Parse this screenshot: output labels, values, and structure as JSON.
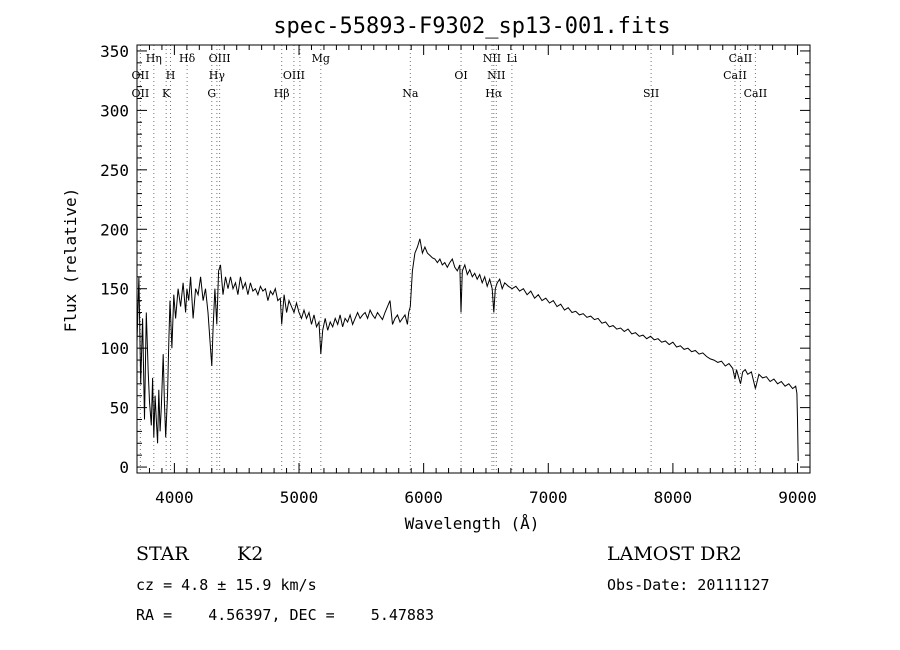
{
  "chart_data": {
    "type": "line",
    "title": "spec-55893-F9302_sp13-001.fits",
    "xlabel": "Wavelength (Å)",
    "ylabel": "Flux (relative)",
    "xlim": [
      3700,
      9100
    ],
    "ylim": [
      -5,
      355
    ],
    "x_ticks": [
      4000,
      5000,
      6000,
      7000,
      8000,
      9000
    ],
    "y_ticks": [
      0,
      50,
      100,
      150,
      200,
      250,
      300,
      350
    ],
    "grid": false,
    "colors": {
      "spectrum": "#000000",
      "line_markers": "#d84a4a"
    },
    "series": [
      {
        "points": [
          [
            3700,
            105
          ],
          [
            3715,
            160
          ],
          [
            3730,
            70
          ],
          [
            3745,
            125
          ],
          [
            3760,
            40
          ],
          [
            3775,
            130
          ],
          [
            3790,
            80
          ],
          [
            3800,
            55
          ],
          [
            3815,
            35
          ],
          [
            3825,
            75
          ],
          [
            3835,
            25
          ],
          [
            3845,
            60
          ],
          [
            3855,
            40
          ],
          [
            3865,
            20
          ],
          [
            3875,
            65
          ],
          [
            3885,
            30
          ],
          [
            3895,
            50
          ],
          [
            3910,
            95
          ],
          [
            3920,
            55
          ],
          [
            3930,
            25
          ],
          [
            3945,
            60
          ],
          [
            3955,
            105
          ],
          [
            3965,
            140
          ],
          [
            3980,
            100
          ],
          [
            3995,
            145
          ],
          [
            4010,
            125
          ],
          [
            4030,
            150
          ],
          [
            4050,
            135
          ],
          [
            4070,
            155
          ],
          [
            4090,
            130
          ],
          [
            4100,
            150
          ],
          [
            4115,
            140
          ],
          [
            4130,
            160
          ],
          [
            4150,
            125
          ],
          [
            4170,
            150
          ],
          [
            4190,
            145
          ],
          [
            4210,
            160
          ],
          [
            4230,
            140
          ],
          [
            4250,
            150
          ],
          [
            4270,
            130
          ],
          [
            4290,
            100
          ],
          [
            4300,
            85
          ],
          [
            4310,
            115
          ],
          [
            4325,
            150
          ],
          [
            4340,
            120
          ],
          [
            4355,
            165
          ],
          [
            4370,
            170
          ],
          [
            4390,
            145
          ],
          [
            4410,
            160
          ],
          [
            4430,
            150
          ],
          [
            4450,
            160
          ],
          [
            4470,
            150
          ],
          [
            4490,
            155
          ],
          [
            4510,
            145
          ],
          [
            4530,
            160
          ],
          [
            4550,
            150
          ],
          [
            4570,
            155
          ],
          [
            4590,
            145
          ],
          [
            4610,
            155
          ],
          [
            4630,
            148
          ],
          [
            4650,
            150
          ],
          [
            4670,
            145
          ],
          [
            4690,
            152
          ],
          [
            4710,
            148
          ],
          [
            4730,
            150
          ],
          [
            4750,
            140
          ],
          [
            4770,
            148
          ],
          [
            4790,
            145
          ],
          [
            4810,
            150
          ],
          [
            4830,
            140
          ],
          [
            4850,
            142
          ],
          [
            4861,
            120
          ],
          [
            4880,
            145
          ],
          [
            4900,
            130
          ],
          [
            4920,
            140
          ],
          [
            4940,
            135
          ],
          [
            4960,
            130
          ],
          [
            4980,
            138
          ],
          [
            5000,
            130
          ],
          [
            5020,
            125
          ],
          [
            5040,
            132
          ],
          [
            5060,
            125
          ],
          [
            5080,
            130
          ],
          [
            5100,
            120
          ],
          [
            5120,
            128
          ],
          [
            5140,
            118
          ],
          [
            5160,
            122
          ],
          [
            5175,
            95
          ],
          [
            5190,
            115
          ],
          [
            5210,
            125
          ],
          [
            5230,
            115
          ],
          [
            5250,
            122
          ],
          [
            5270,
            118
          ],
          [
            5290,
            125
          ],
          [
            5310,
            120
          ],
          [
            5330,
            128
          ],
          [
            5350,
            118
          ],
          [
            5370,
            125
          ],
          [
            5390,
            122
          ],
          [
            5410,
            128
          ],
          [
            5430,
            120
          ],
          [
            5450,
            125
          ],
          [
            5470,
            130
          ],
          [
            5490,
            125
          ],
          [
            5510,
            128
          ],
          [
            5530,
            130
          ],
          [
            5550,
            125
          ],
          [
            5570,
            132
          ],
          [
            5590,
            128
          ],
          [
            5610,
            125
          ],
          [
            5630,
            130
          ],
          [
            5650,
            127
          ],
          [
            5670,
            124
          ],
          [
            5690,
            130
          ],
          [
            5710,
            135
          ],
          [
            5730,
            140
          ],
          [
            5750,
            120
          ],
          [
            5770,
            125
          ],
          [
            5790,
            128
          ],
          [
            5810,
            122
          ],
          [
            5830,
            125
          ],
          [
            5850,
            128
          ],
          [
            5870,
            120
          ],
          [
            5880,
            130
          ],
          [
            5893,
            135
          ],
          [
            5910,
            165
          ],
          [
            5930,
            180
          ],
          [
            5950,
            185
          ],
          [
            5970,
            192
          ],
          [
            5990,
            180
          ],
          [
            6010,
            185
          ],
          [
            6030,
            180
          ],
          [
            6050,
            178
          ],
          [
            6070,
            176
          ],
          [
            6090,
            175
          ],
          [
            6110,
            172
          ],
          [
            6130,
            175
          ],
          [
            6150,
            170
          ],
          [
            6170,
            172
          ],
          [
            6190,
            168
          ],
          [
            6210,
            172
          ],
          [
            6230,
            175
          ],
          [
            6250,
            168
          ],
          [
            6270,
            165
          ],
          [
            6290,
            170
          ],
          [
            6300,
            130
          ],
          [
            6310,
            165
          ],
          [
            6330,
            170
          ],
          [
            6350,
            162
          ],
          [
            6370,
            166
          ],
          [
            6390,
            160
          ],
          [
            6410,
            163
          ],
          [
            6430,
            158
          ],
          [
            6450,
            162
          ],
          [
            6470,
            155
          ],
          [
            6490,
            160
          ],
          [
            6510,
            152
          ],
          [
            6530,
            158
          ],
          [
            6550,
            150
          ],
          [
            6563,
            130
          ],
          [
            6575,
            150
          ],
          [
            6590,
            155
          ],
          [
            6610,
            158
          ],
          [
            6630,
            150
          ],
          [
            6650,
            155
          ],
          [
            6680,
            152
          ],
          [
            6710,
            150
          ],
          [
            6740,
            152
          ],
          [
            6770,
            148
          ],
          [
            6800,
            150
          ],
          [
            6830,
            145
          ],
          [
            6860,
            148
          ],
          [
            6890,
            142
          ],
          [
            6920,
            145
          ],
          [
            6950,
            140
          ],
          [
            6980,
            142
          ],
          [
            7010,
            138
          ],
          [
            7040,
            140
          ],
          [
            7070,
            135
          ],
          [
            7100,
            137
          ],
          [
            7130,
            132
          ],
          [
            7160,
            134
          ],
          [
            7190,
            130
          ],
          [
            7220,
            131
          ],
          [
            7250,
            128
          ],
          [
            7280,
            129
          ],
          [
            7310,
            126
          ],
          [
            7340,
            127
          ],
          [
            7370,
            124
          ],
          [
            7400,
            125
          ],
          [
            7430,
            121
          ],
          [
            7460,
            122
          ],
          [
            7490,
            118
          ],
          [
            7520,
            119
          ],
          [
            7550,
            116
          ],
          [
            7580,
            117
          ],
          [
            7610,
            114
          ],
          [
            7640,
            116
          ],
          [
            7670,
            112
          ],
          [
            7700,
            113
          ],
          [
            7730,
            110
          ],
          [
            7760,
            111
          ],
          [
            7790,
            108
          ],
          [
            7820,
            110
          ],
          [
            7850,
            107
          ],
          [
            7880,
            108
          ],
          [
            7910,
            105
          ],
          [
            7940,
            106
          ],
          [
            7970,
            103
          ],
          [
            8000,
            105
          ],
          [
            8030,
            101
          ],
          [
            8060,
            102
          ],
          [
            8090,
            99
          ],
          [
            8120,
            100
          ],
          [
            8150,
            97
          ],
          [
            8180,
            98
          ],
          [
            8210,
            95
          ],
          [
            8240,
            96
          ],
          [
            8270,
            93
          ],
          [
            8300,
            91
          ],
          [
            8330,
            90
          ],
          [
            8360,
            88
          ],
          [
            8390,
            89
          ],
          [
            8420,
            85
          ],
          [
            8450,
            87
          ],
          [
            8480,
            83
          ],
          [
            8498,
            74
          ],
          [
            8510,
            82
          ],
          [
            8542,
            70
          ],
          [
            8560,
            80
          ],
          [
            8580,
            82
          ],
          [
            8600,
            78
          ],
          [
            8630,
            80
          ],
          [
            8662,
            66
          ],
          [
            8690,
            78
          ],
          [
            8720,
            75
          ],
          [
            8750,
            76
          ],
          [
            8780,
            72
          ],
          [
            8810,
            74
          ],
          [
            8840,
            70
          ],
          [
            8870,
            72
          ],
          [
            8900,
            68
          ],
          [
            8930,
            70
          ],
          [
            8960,
            66
          ],
          [
            8985,
            68
          ],
          [
            8995,
            62
          ],
          [
            9000,
            40
          ],
          [
            9005,
            5
          ]
        ]
      }
    ],
    "line_markers": [
      {
        "wavelength": 3727,
        "label": "OII",
        "row": 1
      },
      {
        "wavelength": 3727,
        "label": "OII",
        "row": 2
      },
      {
        "wavelength": 3835,
        "label": "Hη",
        "row": 0
      },
      {
        "wavelength": 3934,
        "label": "K",
        "row": 2
      },
      {
        "wavelength": 3969,
        "label": "H",
        "row": 1
      },
      {
        "wavelength": 4102,
        "label": "Hδ",
        "row": 0
      },
      {
        "wavelength": 4300,
        "label": "G",
        "row": 2
      },
      {
        "wavelength": 4341,
        "label": "Hγ",
        "row": 1
      },
      {
        "wavelength": 4363,
        "label": "OIII",
        "row": 0
      },
      {
        "wavelength": 4861,
        "label": "Hβ",
        "row": 2
      },
      {
        "wavelength": 4959,
        "label": "OIII",
        "row": 1
      },
      {
        "wavelength": 5007,
        "label": "",
        "row": 1
      },
      {
        "wavelength": 5175,
        "label": "Mg",
        "row": 0
      },
      {
        "wavelength": 5893,
        "label": "Na",
        "row": 2
      },
      {
        "wavelength": 6300,
        "label": "OI",
        "row": 1
      },
      {
        "wavelength": 6548,
        "label": "NII",
        "row": 0
      },
      {
        "wavelength": 6563,
        "label": "Hα",
        "row": 2
      },
      {
        "wavelength": 6583,
        "label": "NII",
        "row": 1
      },
      {
        "wavelength": 6708,
        "label": "Li",
        "row": 0
      },
      {
        "wavelength": 7825,
        "label": "SII",
        "row": 2
      },
      {
        "wavelength": 8498,
        "label": "CaII",
        "row": 1
      },
      {
        "wavelength": 8542,
        "label": "CaII",
        "row": 0
      },
      {
        "wavelength": 8662,
        "label": "CaII",
        "row": 2
      }
    ]
  },
  "info": {
    "object_class": "STAR",
    "subclass": "K2",
    "survey": "LAMOST DR2",
    "redshift_line": "cz = 4.8 ± 15.9 km/s",
    "obs_date": "Obs-Date: 20111127",
    "coords_line": "RA =    4.56397, DEC =    5.47883"
  }
}
